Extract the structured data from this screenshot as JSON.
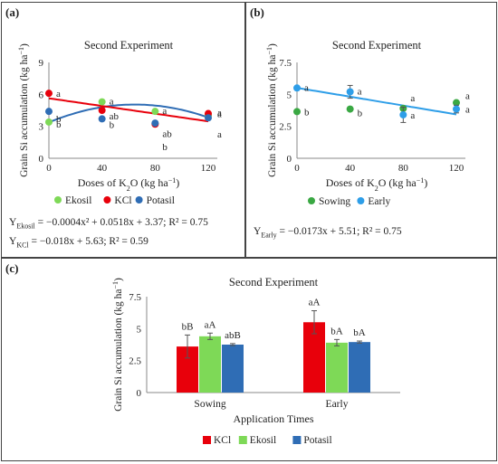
{
  "panels": [
    {
      "label": "(a)",
      "equations": [
        {
          "subscript": "Ekosil",
          "text": " = −0.0004x² + 0.0518x + 3.37; R² = 0.75"
        },
        {
          "subscript": "KCl",
          "text": " = −0.018x + 5.63; R² = 0.59"
        }
      ]
    },
    {
      "label": "(b)",
      "equations": [
        {
          "subscript": "Early",
          "text": " = −0.0173x + 5.51; R² = 0.75"
        }
      ]
    },
    {
      "label": "(c)",
      "equations": []
    }
  ],
  "chart_data": [
    {
      "type": "scatter",
      "title": "Second Experiment",
      "xlabel": "Doses of K2O (kg ha−1)",
      "ylabel": "Grain Si accumulation (kg ha−1)",
      "xlim": [
        0,
        120
      ],
      "ylim": [
        0,
        9
      ],
      "xticks": [
        "0",
        "40",
        "80",
        "120"
      ],
      "yticks": [
        "0",
        "3",
        "6",
        "9"
      ],
      "legend_position": "bottom",
      "series": [
        {
          "name": "Ekosil",
          "color": "#7ed957",
          "x": [
            0,
            40,
            80,
            120
          ],
          "y": [
            3.4,
            5.3,
            4.4,
            4.0
          ],
          "labels": [
            "b",
            "a",
            "a",
            "a"
          ]
        },
        {
          "name": "KCl",
          "color": "#e8000b",
          "x": [
            0,
            40,
            80,
            120
          ],
          "y": [
            6.1,
            4.5,
            3.2,
            4.2
          ],
          "labels": [
            "a",
            "ab",
            "ab",
            "a"
          ]
        },
        {
          "name": "Potasil",
          "color": "#2f6db5",
          "x": [
            0,
            40,
            80,
            120
          ],
          "y": [
            4.4,
            3.7,
            3.3,
            3.8
          ],
          "labels": [
            "b",
            "b",
            "b",
            "a"
          ]
        }
      ],
      "trendlines": [
        {
          "series": "Ekosil",
          "kind": "quadratic",
          "coef": [
            -0.0004,
            0.0518,
            3.37
          ],
          "color": "#2f6db5"
        },
        {
          "series": "KCl",
          "kind": "linear",
          "coef": [
            0,
            -0.018,
            5.63
          ],
          "color": "#e8000b"
        }
      ]
    },
    {
      "type": "scatter",
      "title": "Second Experiment",
      "xlabel": "Doses of K2O (kg ha−1)",
      "ylabel": "Grain Si accumulation (kg ha−1)",
      "xlim": [
        0,
        120
      ],
      "ylim": [
        0,
        7.5
      ],
      "xticks": [
        "0",
        "40",
        "80",
        "120"
      ],
      "yticks": [
        "0",
        "2.5",
        "5",
        "7.5"
      ],
      "legend_position": "bottom",
      "series": [
        {
          "name": "Sowing",
          "color": "#3aa843",
          "x": [
            0,
            40,
            80,
            120
          ],
          "y": [
            3.65,
            3.85,
            3.9,
            4.35
          ],
          "labels": [
            "b",
            "b",
            "a",
            "a"
          ]
        },
        {
          "name": "Early",
          "color": "#2e9ee8",
          "x": [
            0,
            40,
            80,
            120
          ],
          "y": [
            5.5,
            5.2,
            3.4,
            3.85
          ],
          "labels": [
            "a",
            "a",
            "a",
            "a"
          ],
          "err": [
            0,
            0.5,
            0.6,
            0.3
          ]
        }
      ],
      "trendlines": [
        {
          "series": "Early",
          "kind": "linear",
          "coef": [
            0,
            -0.0173,
            5.51
          ],
          "color": "#2e9ee8"
        }
      ]
    },
    {
      "type": "bar",
      "title": "Second Experiment",
      "xlabel": "Application Times",
      "ylabel": "Grain Si accumulation (kg ha−1)",
      "ylim": [
        0,
        7.5
      ],
      "yticks": [
        "0",
        "2.5",
        "5",
        "7.5"
      ],
      "categories": [
        "Sowing",
        "Early"
      ],
      "legend_position": "bottom",
      "series": [
        {
          "name": "KCl",
          "color": "#e8000b",
          "values": [
            3.6,
            5.5
          ],
          "err": [
            0.9,
            0.9
          ],
          "labels": [
            "bB",
            "aA"
          ]
        },
        {
          "name": "Ekosil",
          "color": "#7ed957",
          "values": [
            4.4,
            3.9
          ],
          "err": [
            0.25,
            0.25
          ],
          "labels": [
            "aA",
            "bA"
          ]
        },
        {
          "name": "Potasil",
          "color": "#2f6db5",
          "values": [
            3.75,
            3.95
          ],
          "err": [
            0.08,
            0.08
          ],
          "labels": [
            "abB",
            "bA"
          ]
        }
      ]
    }
  ]
}
